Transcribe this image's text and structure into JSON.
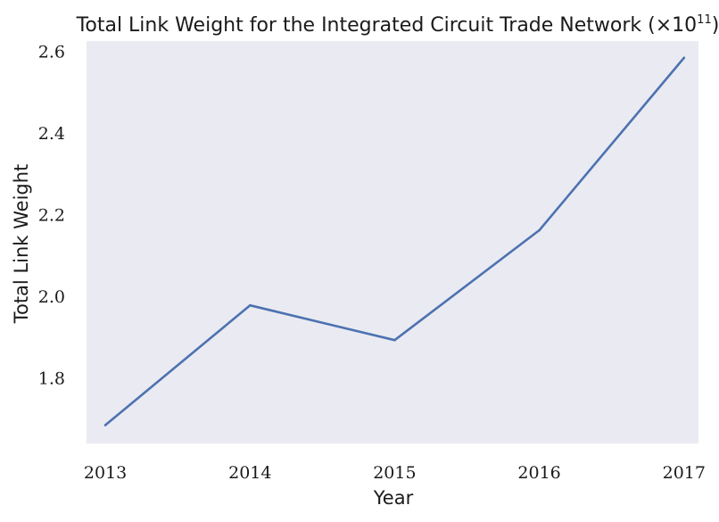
{
  "chart_data": {
    "type": "line",
    "title": {
      "main": "Total Link Weight for the Integrated Circuit Trade Network (×10",
      "exponent": "11",
      "close": ")"
    },
    "xlabel": "Year",
    "ylabel": "Total Link Weight",
    "x": [
      2013,
      2014,
      2015,
      2016,
      2017
    ],
    "x_ticks": [
      "2013",
      "2014",
      "2015",
      "2016",
      "2017"
    ],
    "xlim": [
      2012.87,
      2017.1
    ],
    "y_ticks": [
      "1.8",
      "2.0",
      "2.2",
      "2.4",
      "2.6"
    ],
    "ylim": [
      1.64,
      2.625
    ],
    "series": [
      {
        "values": [
          1.685,
          1.978,
          1.893,
          2.162,
          2.584
        ],
        "color": "#4c72b0"
      }
    ],
    "grid": false,
    "background": "#eaeaf2"
  }
}
